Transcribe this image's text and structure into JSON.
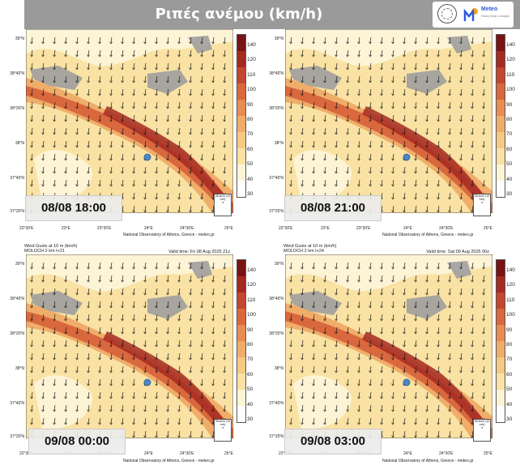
{
  "title": "Ριπές ανέμου (km/h)",
  "logo": {
    "brand": "Meteo",
    "tagline": "Ποιος είναι ο καιρός"
  },
  "colors": {
    "scale": [
      "#ffffff",
      "#fdf4d6",
      "#f9e2a3",
      "#f5c983",
      "#f0ad6a",
      "#e88c52",
      "#d9683e",
      "#c4462f",
      "#a52a22",
      "#7a1414"
    ],
    "land": "#9e9e9e",
    "arrow": "#1a1a1a",
    "location_marker": "#4a86c8"
  },
  "map": {
    "lat_labels": [
      "39°N",
      "38°40'N",
      "38°20'N",
      "38°N",
      "37°40'N",
      "37°20'N"
    ],
    "lon_labels": [
      "22°30'E",
      "23°E",
      "23°30'E",
      "24°E",
      "24°30'E",
      "25°E"
    ],
    "credit": "National Observatory of Athens, Greece - meteo.gr",
    "ref_arrow_text": "36 km/h\n(10 m/s)"
  },
  "colorbar_ticks": [
    "140",
    "120",
    "110",
    "100",
    "90",
    "80",
    "70",
    "60",
    "50",
    "40",
    "30"
  ],
  "panels": [
    {
      "date": "08/08 18:00",
      "header_line1": "",
      "header_line2": "",
      "valid": ""
    },
    {
      "date": "08/08 21:00",
      "header_line1": "",
      "header_line2": "",
      "valid": ""
    },
    {
      "date": "09/08 00:00",
      "header_line1": "Wind Gusts at 10 m (km/h)",
      "header_line2": "MOLOCH 2 km t+21",
      "valid": "Valid time: Fri 08 Aug 2025 21z"
    },
    {
      "date": "09/08 03:00",
      "header_line1": "Wind Gusts at 10 m (km/h)",
      "header_line2": "MOLOCH 2 km t+24",
      "valid": "Valid time: Sat 09 Aug 2025 00z"
    }
  ]
}
